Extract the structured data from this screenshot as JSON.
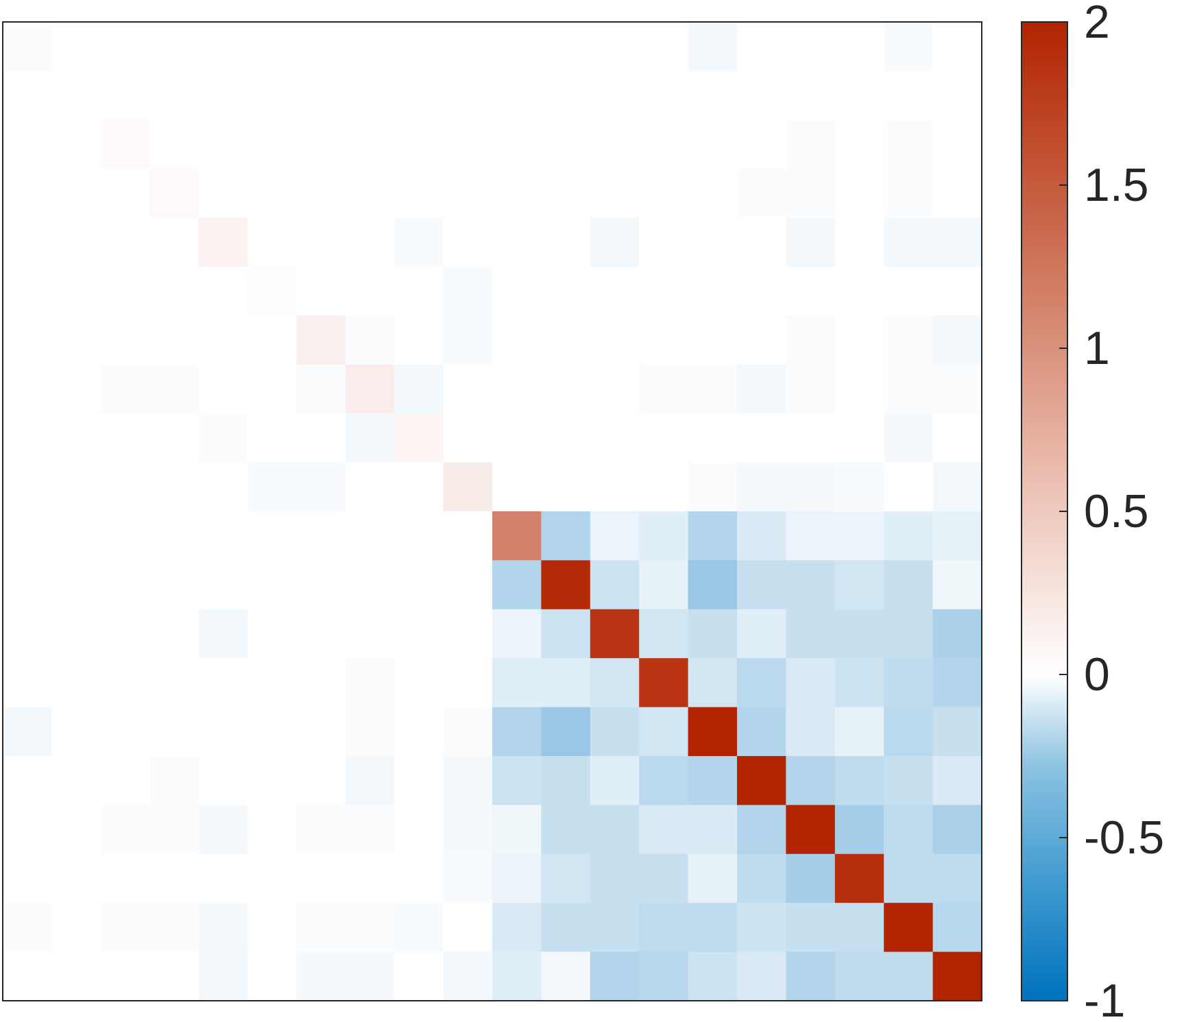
{
  "chart_data": {
    "type": "heatmap",
    "title": "",
    "xlabel": "",
    "ylabel": "",
    "rows": 20,
    "cols": 20,
    "colorbar": {
      "min": -1,
      "max": 2,
      "ticks": [
        2,
        1.5,
        1,
        0.5,
        0,
        -0.5,
        -1
      ],
      "tick_labels": [
        "2",
        "1.5",
        "1",
        "0.5",
        "0",
        "-0.5",
        "-1"
      ],
      "colors": {
        "low": "#0072BD",
        "mid": "#FFFFFF",
        "high": "#B22400"
      }
    },
    "matrix": [
      [
        0.03,
        0,
        0,
        0,
        0,
        0,
        0,
        0,
        0,
        0,
        0,
        0,
        0,
        0,
        -0.05,
        0,
        0,
        0,
        -0.03,
        0
      ],
      [
        0,
        0,
        0,
        0,
        0,
        0,
        0,
        0,
        0,
        0,
        0,
        0,
        0,
        0,
        0,
        0,
        0,
        0,
        0,
        0
      ],
      [
        0,
        0,
        0.05,
        0,
        0,
        0,
        0,
        0,
        0,
        0,
        0,
        0,
        0,
        0,
        0,
        0,
        -0.02,
        0,
        -0.02,
        0
      ],
      [
        0,
        0,
        0,
        0.05,
        0,
        0,
        0,
        0,
        0,
        0,
        0,
        0,
        0,
        0,
        0,
        -0.02,
        -0.02,
        0,
        -0.02,
        0
      ],
      [
        0,
        0,
        0,
        0,
        0.12,
        0,
        0,
        0,
        -0.03,
        0,
        0,
        0,
        -0.05,
        0,
        0,
        0,
        -0.05,
        0,
        -0.05,
        -0.05
      ],
      [
        0,
        0,
        0,
        0,
        0,
        0.02,
        0,
        0,
        0,
        -0.03,
        0,
        0,
        0,
        0,
        0,
        0,
        0,
        0,
        0,
        0
      ],
      [
        0,
        0,
        0,
        0,
        0,
        0,
        0.14,
        -0.02,
        0,
        -0.03,
        0,
        0,
        0,
        0,
        0,
        0,
        -0.02,
        0,
        -0.02,
        -0.05
      ],
      [
        0,
        0,
        -0.02,
        -0.02,
        0,
        0,
        -0.02,
        0.16,
        -0.05,
        0,
        0,
        0,
        0,
        -0.02,
        -0.02,
        -0.04,
        -0.02,
        0,
        -0.02,
        -0.02
      ],
      [
        0,
        0,
        0,
        0,
        -0.02,
        0,
        0,
        -0.05,
        0.09,
        0,
        0,
        0,
        0,
        0,
        0,
        0,
        0,
        0,
        -0.04,
        0
      ],
      [
        0,
        0,
        0,
        0,
        0,
        -0.03,
        -0.03,
        0,
        0,
        0.17,
        0,
        0,
        0,
        0,
        -0.02,
        -0.04,
        -0.04,
        -0.03,
        0,
        -0.05
      ],
      [
        0,
        0,
        0,
        0,
        0,
        0,
        0,
        0,
        0,
        0,
        1.15,
        -0.3,
        -0.08,
        -0.12,
        -0.3,
        -0.15,
        -0.08,
        -0.08,
        -0.12,
        -0.1
      ],
      [
        0,
        0,
        0,
        0,
        0,
        0,
        0,
        0,
        0,
        0,
        -0.3,
        1.95,
        -0.2,
        -0.1,
        -0.4,
        -0.22,
        -0.22,
        -0.18,
        -0.22,
        -0.06
      ],
      [
        0,
        0,
        0,
        0,
        -0.05,
        0,
        0,
        0,
        0,
        0,
        -0.08,
        -0.2,
        1.85,
        -0.18,
        -0.22,
        -0.12,
        -0.22,
        -0.22,
        -0.22,
        -0.33
      ],
      [
        0,
        0,
        0,
        0,
        0,
        0,
        0,
        -0.02,
        0,
        0,
        -0.12,
        -0.12,
        -0.18,
        1.85,
        -0.18,
        -0.27,
        -0.15,
        -0.2,
        -0.25,
        -0.3
      ],
      [
        -0.05,
        0,
        0,
        0,
        0,
        0,
        0,
        -0.02,
        0,
        -0.02,
        -0.3,
        -0.4,
        -0.22,
        -0.18,
        2.0,
        -0.3,
        -0.15,
        -0.1,
        -0.27,
        -0.22
      ],
      [
        0,
        0,
        0,
        -0.02,
        0,
        0,
        0,
        -0.05,
        0,
        -0.04,
        -0.2,
        -0.22,
        -0.12,
        -0.27,
        -0.3,
        2.0,
        -0.3,
        -0.25,
        -0.22,
        -0.15
      ],
      [
        0,
        0,
        -0.02,
        -0.02,
        -0.04,
        0,
        -0.02,
        -0.02,
        0,
        -0.04,
        -0.06,
        -0.22,
        -0.22,
        -0.15,
        -0.15,
        -0.3,
        2.0,
        -0.35,
        -0.25,
        -0.33
      ],
      [
        0,
        0,
        0,
        0,
        0,
        0,
        0,
        0,
        0,
        -0.03,
        -0.08,
        -0.18,
        -0.22,
        -0.22,
        -0.1,
        -0.25,
        -0.35,
        1.9,
        -0.25,
        -0.25
      ],
      [
        -0.02,
        0,
        -0.02,
        -0.02,
        -0.04,
        0,
        -0.02,
        -0.02,
        -0.03,
        0,
        -0.15,
        -0.22,
        -0.22,
        -0.25,
        -0.25,
        -0.2,
        -0.22,
        -0.22,
        2.0,
        -0.28
      ],
      [
        0,
        0,
        0,
        0,
        -0.05,
        0,
        -0.04,
        -0.04,
        0,
        -0.05,
        -0.12,
        -0.05,
        -0.3,
        -0.28,
        -0.2,
        -0.15,
        -0.3,
        -0.25,
        -0.25,
        2.0
      ]
    ]
  }
}
